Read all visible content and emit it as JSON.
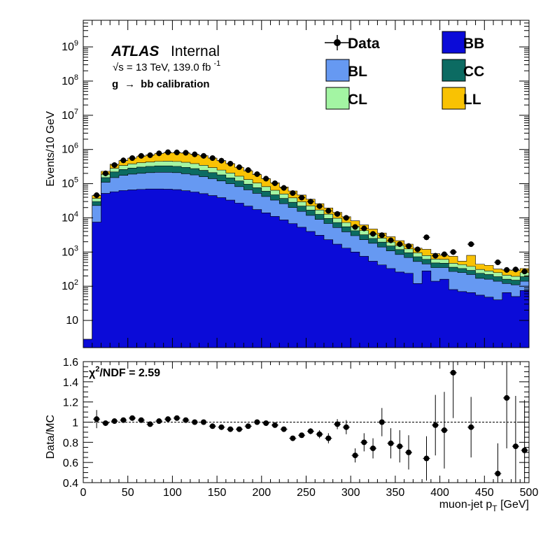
{
  "labels": {
    "atlas": "ATLAS",
    "internal": "Internal",
    "energy_prefix": "√s = 13 TeV, 139.0 fb",
    "energy_exp": "-1",
    "calib_g": "g",
    "calib_arrow": "→",
    "calib_rest": "bb calibration",
    "chi2_chi": "χ",
    "chi2_exp": "2",
    "chi2_rest": "/NDF = 2.59",
    "ylabel_top": "Events/10 GeV",
    "ylabel_bottom": "Data/MC",
    "xlabel_main": "muon-jet p",
    "xlabel_sub": "T",
    "xlabel_unit": " [GeV]"
  },
  "legend": [
    {
      "key": "Data",
      "label": "Data",
      "kind": "marker"
    },
    {
      "key": "BB",
      "label": "BB",
      "kind": "box"
    },
    {
      "key": "BL",
      "label": "BL",
      "kind": "box"
    },
    {
      "key": "CC",
      "label": "CC",
      "kind": "box"
    },
    {
      "key": "CL",
      "label": "CL",
      "kind": "box"
    },
    {
      "key": "LL",
      "label": "LL",
      "kind": "box"
    }
  ],
  "colors": {
    "BB": "#0b0bd8",
    "BL": "#6699f2",
    "CC": "#0c6b62",
    "CL": "#a3f5a3",
    "LL": "#f9c203",
    "data": "#000000"
  },
  "chart_data": [
    {
      "type": "stacked-histogram",
      "bin_width": 10,
      "x_edges_start": 0,
      "xlim": [
        0,
        500
      ],
      "ylim": [
        1.6,
        6000000000
      ],
      "yscale": "log",
      "ylabel": "Events/10 GeV",
      "ytick_labels": [
        {
          "value": 10,
          "label": "10"
        },
        {
          "value": 100,
          "label": "10",
          "exp": "2"
        },
        {
          "value": 1000,
          "label": "10",
          "exp": "3"
        },
        {
          "value": 10000,
          "label": "10",
          "exp": "4"
        },
        {
          "value": 100000,
          "label": "10",
          "exp": "5"
        },
        {
          "value": 1000000,
          "label": "10",
          "exp": "6"
        },
        {
          "value": 10000000,
          "label": "10",
          "exp": "7"
        },
        {
          "value": 100000000,
          "label": "10",
          "exp": "8"
        },
        {
          "value": 1000000000,
          "label": "10",
          "exp": "9"
        }
      ],
      "stack_order": [
        "BB",
        "BL",
        "CC",
        "CL",
        "LL"
      ],
      "stack_totals": {
        "BB": [
          2.8,
          7500,
          52000,
          58000,
          63000,
          66000,
          68000,
          70000,
          70000,
          69000,
          67000,
          62000,
          57000,
          51000,
          45000,
          39000,
          33000,
          27000,
          22000,
          17500,
          14000,
          11000,
          8700,
          6800,
          5300,
          4000,
          3100,
          2300,
          1700,
          1300,
          1000,
          750,
          540,
          420,
          330,
          260,
          240,
          120,
          280,
          140,
          160,
          80,
          70,
          65,
          55,
          48,
          40,
          65,
          50,
          75
        ],
        "BL": [
          2.8,
          23000,
          110000,
          150000,
          175000,
          190000,
          200000,
          210000,
          215000,
          215000,
          210000,
          195000,
          180000,
          160000,
          140000,
          120000,
          100000,
          82000,
          66000,
          52000,
          42000,
          33000,
          26000,
          20000,
          15500,
          11800,
          9000,
          6800,
          5200,
          3900,
          3000,
          2300,
          1800,
          1400,
          1080,
          850,
          690,
          530,
          450,
          350,
          350,
          270,
          250,
          220,
          170,
          160,
          140,
          120,
          110,
          140
        ],
        "CC": [
          2.8,
          30000,
          150000,
          220000,
          260000,
          285000,
          305000,
          320000,
          330000,
          330000,
          320000,
          300000,
          275000,
          245000,
          210000,
          180000,
          148000,
          120000,
          96000,
          76000,
          60000,
          47000,
          37000,
          28500,
          22000,
          16800,
          12700,
          9600,
          7300,
          5500,
          4200,
          3200,
          2500,
          1950,
          1500,
          1180,
          950,
          730,
          610,
          480,
          470,
          360,
          330,
          290,
          240,
          220,
          190,
          160,
          150,
          190
        ],
        "CL": [
          2.8,
          37000,
          185000,
          280000,
          340000,
          380000,
          410000,
          430000,
          450000,
          455000,
          445000,
          420000,
          385000,
          345000,
          295000,
          250000,
          205000,
          165000,
          132000,
          104000,
          82000,
          64000,
          50000,
          38500,
          29500,
          22500,
          17000,
          12800,
          9700,
          7300,
          5600,
          4250,
          3300,
          2550,
          1960,
          1540,
          1240,
          950,
          790,
          620,
          610,
          470,
          430,
          380,
          310,
          280,
          250,
          210,
          195,
          250
        ],
        "LL": [
          2.8,
          45000,
          230000,
          370000,
          470000,
          560000,
          630000,
          690000,
          760000,
          800000,
          800000,
          780000,
          720000,
          660000,
          560000,
          470000,
          385000,
          300000,
          238000,
          183000,
          140000,
          106000,
          80000,
          61000,
          46500,
          35000,
          26000,
          19500,
          14500,
          10800,
          8200,
          6200,
          4700,
          3600,
          2800,
          2150,
          1700,
          1300,
          1200,
          900,
          800,
          750,
          540,
          800,
          440,
          410,
          320,
          300,
          290,
          330
        ]
      },
      "data_points": {
        "x": [
          15,
          25,
          35,
          45,
          55,
          65,
          75,
          85,
          95,
          105,
          115,
          125,
          135,
          145,
          155,
          165,
          175,
          185,
          195,
          205,
          215,
          225,
          235,
          245,
          255,
          265,
          275,
          285,
          295,
          305,
          315,
          325,
          335,
          345,
          355,
          365,
          375,
          385,
          395,
          405,
          415,
          435,
          465,
          475,
          485,
          495
        ],
        "y": [
          46000,
          200000,
          350000,
          480000,
          560000,
          650000,
          680000,
          770000,
          830000,
          820000,
          800000,
          720000,
          650000,
          560000,
          470000,
          385000,
          303000,
          250000,
          190000,
          140000,
          103000,
          75000,
          53000,
          39000,
          30000,
          22000,
          16000,
          13000,
          10000,
          5400,
          4900,
          3400,
          3100,
          2200,
          1700,
          1500,
          1200,
          2700,
          780,
          860,
          1000,
          1700,
          500,
          300,
          310,
          270
        ]
      }
    },
    {
      "type": "scatter",
      "ylabel": "Data/MC",
      "xlabel": "muon-jet p_T [GeV]",
      "xlim": [
        0,
        500
      ],
      "ylim": [
        0.4,
        1.6
      ],
      "xticks": [
        0,
        50,
        100,
        150,
        200,
        250,
        300,
        350,
        400,
        450,
        500
      ],
      "yticks": [
        0.4,
        0.6,
        0.8,
        1,
        1.2,
        1.4,
        1.6
      ],
      "ytick_labels": [
        "0.4",
        "0.6",
        "0.8",
        "1",
        "1.2",
        "1.4",
        "1.6"
      ],
      "reference_line": 1,
      "x": [
        15,
        25,
        35,
        45,
        55,
        65,
        75,
        85,
        95,
        105,
        115,
        125,
        135,
        145,
        155,
        165,
        175,
        185,
        195,
        205,
        215,
        225,
        235,
        245,
        255,
        265,
        275,
        285,
        295,
        305,
        315,
        325,
        335,
        345,
        355,
        365,
        385,
        395,
        405,
        415,
        435,
        465,
        475,
        485,
        495
      ],
      "y": [
        1.03,
        0.99,
        1.01,
        1.02,
        1.04,
        1.02,
        0.98,
        1.01,
        1.03,
        1.04,
        1.02,
        1.0,
        1.0,
        0.96,
        0.95,
        0.93,
        0.93,
        0.96,
        1.0,
        0.99,
        0.97,
        0.93,
        0.84,
        0.87,
        0.91,
        0.88,
        0.84,
        0.98,
        0.95,
        0.67,
        0.8,
        0.74,
        1.0,
        0.79,
        0.76,
        0.7,
        0.64,
        0.97,
        0.92,
        1.49,
        0.95,
        0.49,
        1.24,
        0.76,
        0.72
      ],
      "err": [
        0.09,
        0.02,
        0.01,
        0.01,
        0.01,
        0.01,
        0.01,
        0.01,
        0.01,
        0.01,
        0.01,
        0.01,
        0.01,
        0.01,
        0.01,
        0.01,
        0.01,
        0.01,
        0.01,
        0.01,
        0.01,
        0.01,
        0.02,
        0.02,
        0.03,
        0.04,
        0.05,
        0.05,
        0.07,
        0.07,
        0.09,
        0.1,
        0.14,
        0.15,
        0.16,
        0.17,
        0.22,
        0.3,
        0.38,
        0.45,
        0.3,
        0.3,
        0.5,
        0.5,
        0.5
      ]
    }
  ]
}
